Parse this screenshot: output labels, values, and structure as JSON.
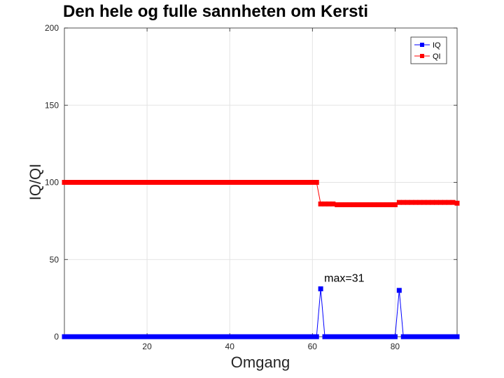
{
  "chart_data": {
    "type": "line",
    "title": "Den hele og fulle sannheten om Kersti",
    "xlabel": "Omgang",
    "ylabel": "IQ/QI",
    "xlim": [
      0,
      95
    ],
    "ylim": [
      0,
      200
    ],
    "xticks": [
      20,
      40,
      60,
      80
    ],
    "yticks": [
      0,
      50,
      100,
      150,
      200
    ],
    "grid": true,
    "legend_position": "top-right",
    "annotation": {
      "text": "max=31",
      "x": 62,
      "y": 31
    },
    "series": [
      {
        "name": "IQ",
        "color": "#0000ff",
        "marker": "square",
        "x": [
          0,
          1,
          2,
          3,
          4,
          5,
          6,
          7,
          8,
          9,
          10,
          11,
          12,
          13,
          14,
          15,
          16,
          17,
          18,
          19,
          20,
          21,
          22,
          23,
          24,
          25,
          26,
          27,
          28,
          29,
          30,
          31,
          32,
          33,
          34,
          35,
          36,
          37,
          38,
          39,
          40,
          41,
          42,
          43,
          44,
          45,
          46,
          47,
          48,
          49,
          50,
          51,
          52,
          53,
          54,
          55,
          56,
          57,
          58,
          59,
          60,
          61,
          62,
          63,
          64,
          65,
          66,
          67,
          68,
          69,
          70,
          71,
          72,
          73,
          74,
          75,
          76,
          77,
          78,
          79,
          80,
          81,
          82,
          83,
          84,
          85,
          86,
          87,
          88,
          89,
          90,
          91,
          92,
          93,
          94,
          95
        ],
        "y": [
          0,
          0,
          0,
          0,
          0,
          0,
          0,
          0,
          0,
          0,
          0,
          0,
          0,
          0,
          0,
          0,
          0,
          0,
          0,
          0,
          0,
          0,
          0,
          0,
          0,
          0,
          0,
          0,
          0,
          0,
          0,
          0,
          0,
          0,
          0,
          0,
          0,
          0,
          0,
          0,
          0,
          0,
          0,
          0,
          0,
          0,
          0,
          0,
          0,
          0,
          0,
          0,
          0,
          0,
          0,
          0,
          0,
          0,
          0,
          0,
          0,
          0,
          31,
          0,
          0,
          0,
          0,
          0,
          0,
          0,
          0,
          0,
          0,
          0,
          0,
          0,
          0,
          0,
          0,
          0,
          0,
          30,
          0,
          0,
          0,
          0,
          0,
          0,
          0,
          0,
          0,
          0,
          0,
          0,
          0,
          0
        ]
      },
      {
        "name": "QI",
        "color": "#ff0000",
        "marker": "square",
        "x": [
          0,
          1,
          2,
          3,
          4,
          5,
          6,
          7,
          8,
          9,
          10,
          11,
          12,
          13,
          14,
          15,
          16,
          17,
          18,
          19,
          20,
          21,
          22,
          23,
          24,
          25,
          26,
          27,
          28,
          29,
          30,
          31,
          32,
          33,
          34,
          35,
          36,
          37,
          38,
          39,
          40,
          41,
          42,
          43,
          44,
          45,
          46,
          47,
          48,
          49,
          50,
          51,
          52,
          53,
          54,
          55,
          56,
          57,
          58,
          59,
          60,
          61,
          62,
          63,
          64,
          65,
          66,
          67,
          68,
          69,
          70,
          71,
          72,
          73,
          74,
          75,
          76,
          77,
          78,
          79,
          80,
          81,
          82,
          83,
          84,
          85,
          86,
          87,
          88,
          89,
          90,
          91,
          92,
          93,
          94,
          95
        ],
        "y": [
          100,
          100,
          100,
          100,
          100,
          100,
          100,
          100,
          100,
          100,
          100,
          100,
          100,
          100,
          100,
          100,
          100,
          100,
          100,
          100,
          100,
          100,
          100,
          100,
          100,
          100,
          100,
          100,
          100,
          100,
          100,
          100,
          100,
          100,
          100,
          100,
          100,
          100,
          100,
          100,
          100,
          100,
          100,
          100,
          100,
          100,
          100,
          100,
          100,
          100,
          100,
          100,
          100,
          100,
          100,
          100,
          100,
          100,
          100,
          100,
          100,
          100,
          86,
          86,
          86,
          86,
          85.5,
          85.5,
          85.5,
          85.5,
          85.5,
          85.5,
          85.5,
          85.5,
          85.5,
          85.5,
          85.5,
          85.5,
          85.5,
          85.5,
          85.5,
          87,
          87,
          87,
          87,
          87,
          87,
          87,
          87,
          87,
          87,
          87,
          87,
          87,
          87,
          86.5
        ]
      }
    ]
  }
}
